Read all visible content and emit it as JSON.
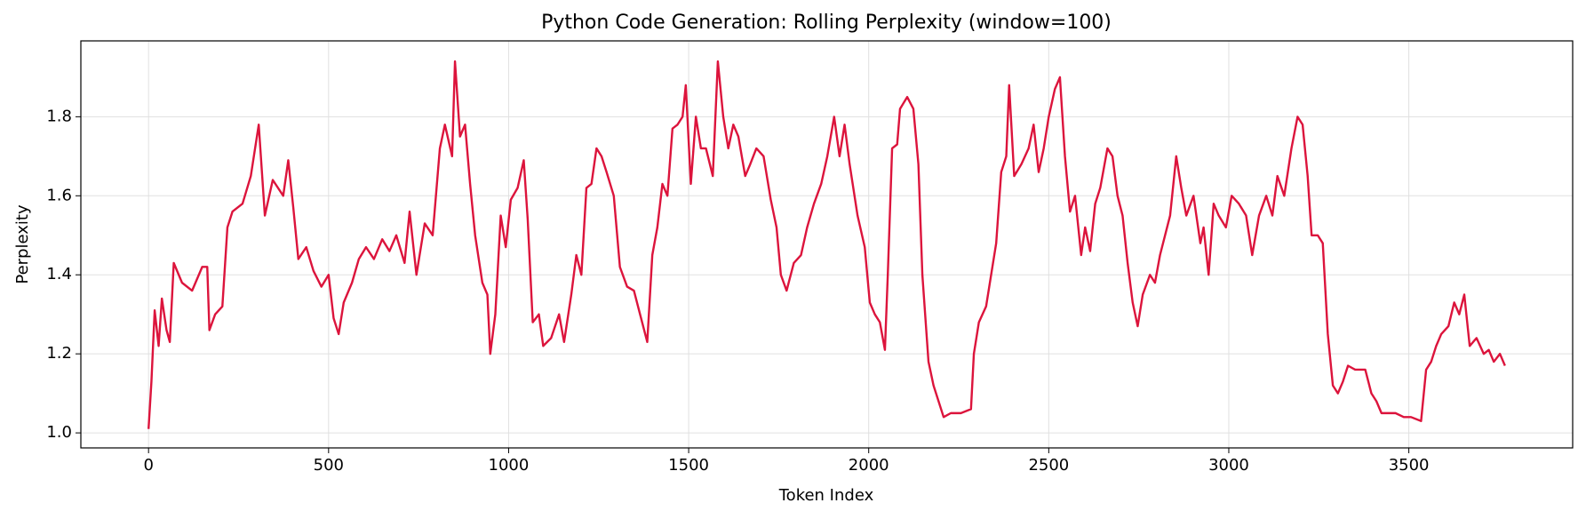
{
  "chart_data": {
    "type": "line",
    "title": "Python Code Generation: Rolling Perplexity (window=100)",
    "x_label": "Token Index",
    "y_label": "Perplexity",
    "xlim": [
      -188,
      3955
    ],
    "ylim": [
      0.962,
      1.992
    ],
    "xticks": [
      0,
      500,
      1000,
      1500,
      2000,
      2500,
      3000,
      3500
    ],
    "yticks": [
      {
        "value": 1.0,
        "label": "1.0"
      },
      1.2,
      1.4,
      1.6,
      1.8
    ],
    "grid": true,
    "series": [
      {
        "name": "Rolling Perplexity",
        "color": "#dc143c",
        "x": [
          0,
          8,
          17,
          28,
          37,
          50,
          59,
          70,
          93,
          121,
          149,
          163,
          169,
          185,
          205,
          219,
          233,
          261,
          284,
          306,
          323,
          345,
          374,
          388,
          402,
          416,
          438,
          458,
          480,
          500,
          514,
          528,
          542,
          565,
          584,
          604,
          626,
          649,
          669,
          688,
          711,
          725,
          744,
          767,
          789,
          809,
          823,
          843,
          851,
          865,
          879,
          893,
          907,
          927,
          941,
          949,
          963,
          978,
          992,
          1006,
          1025,
          1042,
          1053,
          1067,
          1084,
          1096,
          1118,
          1140,
          1154,
          1174,
          1188,
          1202,
          1216,
          1230,
          1244,
          1258,
          1272,
          1292,
          1309,
          1329,
          1348,
          1365,
          1385,
          1399,
          1413,
          1427,
          1441,
          1455,
          1469,
          1483,
          1492,
          1506,
          1520,
          1534,
          1548,
          1567,
          1581,
          1596,
          1610,
          1624,
          1638,
          1657,
          1671,
          1688,
          1708,
          1728,
          1744,
          1756,
          1772,
          1792,
          1812,
          1829,
          1848,
          1868,
          1885,
          1904,
          1919,
          1933,
          1947,
          1969,
          1989,
          2003,
          2017,
          2031,
          2045,
          2053,
          2065,
          2079,
          2087,
          2107,
          2124,
          2138,
          2149,
          2166,
          2180,
          2194,
          2208,
          2228,
          2256,
          2284,
          2292,
          2306,
          2326,
          2340,
          2354,
          2368,
          2382,
          2390,
          2404,
          2424,
          2444,
          2458,
          2472,
          2486,
          2500,
          2517,
          2531,
          2545,
          2559,
          2573,
          2590,
          2601,
          2615,
          2629,
          2643,
          2663,
          2677,
          2691,
          2705,
          2719,
          2733,
          2747,
          2761,
          2781,
          2795,
          2809,
          2823,
          2837,
          2854,
          2868,
          2882,
          2902,
          2921,
          2930,
          2944,
          2958,
          2972,
          2992,
          3008,
          3028,
          3048,
          3065,
          3084,
          3104,
          3121,
          3135,
          3154,
          3174,
          3191,
          3205,
          3219,
          3230,
          3247,
          3261,
          3275,
          3289,
          3303,
          3317,
          3331,
          3351,
          3365,
          3379,
          3396,
          3410,
          3424,
          3444,
          3463,
          3486,
          3506,
          3534,
          3548,
          3562,
          3576,
          3590,
          3610,
          3626,
          3640,
          3654,
          3669,
          3688,
          3708,
          3722,
          3736,
          3753,
          3767
        ],
        "values": [
          1.01,
          1.13,
          1.31,
          1.22,
          1.34,
          1.26,
          1.23,
          1.43,
          1.38,
          1.36,
          1.42,
          1.42,
          1.26,
          1.3,
          1.32,
          1.52,
          1.56,
          1.58,
          1.65,
          1.78,
          1.55,
          1.64,
          1.6,
          1.69,
          1.57,
          1.44,
          1.47,
          1.41,
          1.37,
          1.4,
          1.29,
          1.25,
          1.33,
          1.38,
          1.44,
          1.47,
          1.44,
          1.49,
          1.46,
          1.5,
          1.43,
          1.56,
          1.4,
          1.53,
          1.5,
          1.72,
          1.78,
          1.7,
          1.94,
          1.75,
          1.78,
          1.63,
          1.5,
          1.38,
          1.35,
          1.2,
          1.3,
          1.55,
          1.47,
          1.59,
          1.62,
          1.69,
          1.54,
          1.28,
          1.3,
          1.22,
          1.24,
          1.3,
          1.23,
          1.35,
          1.45,
          1.4,
          1.62,
          1.63,
          1.72,
          1.7,
          1.66,
          1.6,
          1.42,
          1.37,
          1.36,
          1.3,
          1.23,
          1.45,
          1.52,
          1.63,
          1.6,
          1.77,
          1.78,
          1.8,
          1.88,
          1.63,
          1.8,
          1.72,
          1.72,
          1.65,
          1.94,
          1.8,
          1.72,
          1.78,
          1.75,
          1.65,
          1.68,
          1.72,
          1.7,
          1.59,
          1.52,
          1.4,
          1.36,
          1.43,
          1.45,
          1.52,
          1.58,
          1.63,
          1.7,
          1.8,
          1.7,
          1.78,
          1.68,
          1.55,
          1.47,
          1.33,
          1.3,
          1.28,
          1.21,
          1.4,
          1.72,
          1.73,
          1.82,
          1.85,
          1.82,
          1.68,
          1.4,
          1.18,
          1.12,
          1.08,
          1.04,
          1.05,
          1.05,
          1.06,
          1.2,
          1.28,
          1.32,
          1.4,
          1.48,
          1.66,
          1.7,
          1.88,
          1.65,
          1.68,
          1.72,
          1.78,
          1.66,
          1.72,
          1.8,
          1.87,
          1.9,
          1.7,
          1.56,
          1.6,
          1.45,
          1.52,
          1.46,
          1.58,
          1.62,
          1.72,
          1.7,
          1.6,
          1.55,
          1.43,
          1.33,
          1.27,
          1.35,
          1.4,
          1.38,
          1.45,
          1.5,
          1.55,
          1.7,
          1.62,
          1.55,
          1.6,
          1.48,
          1.52,
          1.4,
          1.58,
          1.55,
          1.52,
          1.6,
          1.58,
          1.55,
          1.45,
          1.55,
          1.6,
          1.55,
          1.65,
          1.6,
          1.72,
          1.8,
          1.78,
          1.65,
          1.5,
          1.5,
          1.48,
          1.25,
          1.12,
          1.1,
          1.13,
          1.17,
          1.16,
          1.16,
          1.16,
          1.1,
          1.08,
          1.05,
          1.05,
          1.05,
          1.04,
          1.04,
          1.03,
          1.16,
          1.18,
          1.22,
          1.25,
          1.27,
          1.33,
          1.3,
          1.35,
          1.22,
          1.24,
          1.2,
          1.21,
          1.18,
          1.2,
          1.17
        ]
      }
    ]
  }
}
